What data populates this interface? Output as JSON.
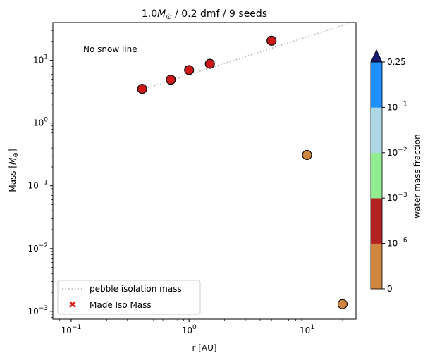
{
  "chart_data": {
    "type": "scatter",
    "title": {
      "main": "1.0",
      "msub": "⊙",
      "rest": " / 0.2 dmf / 9 seeds"
    },
    "xlabel": "r [AU]",
    "ylabel": {
      "main": "Mass [",
      "msub": "⊕",
      "rest": "]"
    },
    "xscale": "log",
    "yscale": "log",
    "xlim": [
      0.07,
      26
    ],
    "ylim": [
      0.00075,
      40
    ],
    "grid": false,
    "x_tick_labels": [
      {
        "value": 0.1,
        "base": "10",
        "exp": "−1"
      },
      {
        "value": 1,
        "base": "10",
        "exp": "0"
      },
      {
        "value": 10,
        "base": "10",
        "exp": "1"
      }
    ],
    "y_tick_labels": [
      {
        "value": 0.001,
        "base": "10",
        "exp": "−3"
      },
      {
        "value": 0.01,
        "base": "10",
        "exp": "−2"
      },
      {
        "value": 0.1,
        "base": "10",
        "exp": "−1"
      },
      {
        "value": 1,
        "base": "10",
        "exp": "0"
      },
      {
        "value": 10,
        "base": "10",
        "exp": "1"
      }
    ],
    "annotation": "No snow line",
    "pebble_isolation_mass": {
      "name": "pebble isolation mass",
      "x": [
        0.4,
        26
      ],
      "y": [
        3.4,
        42
      ],
      "color": "#aaaaaa",
      "style": "dotted"
    },
    "planets": [
      {
        "r": 0.4,
        "mass": 3.5,
        "wmf_band": 1,
        "made_iso": true
      },
      {
        "r": 0.7,
        "mass": 4.9,
        "wmf_band": 1,
        "made_iso": true
      },
      {
        "r": 1.0,
        "mass": 7.0,
        "wmf_band": 1,
        "made_iso": true
      },
      {
        "r": 1.5,
        "mass": 8.8,
        "wmf_band": 1,
        "made_iso": true
      },
      {
        "r": 5.0,
        "mass": 20.5,
        "wmf_band": 1,
        "made_iso": true
      },
      {
        "r": 10.0,
        "mass": 0.31,
        "wmf_band": 0,
        "made_iso": false
      },
      {
        "r": 20.0,
        "mass": 0.0013,
        "wmf_band": 0,
        "made_iso": false
      }
    ],
    "made_iso_series": {
      "name": "Made Iso Mass",
      "color": "#dd1111",
      "marker": "x"
    },
    "legend": {
      "position": "lower-left",
      "entries": [
        "pebble isolation mass",
        "Made Iso Mass"
      ]
    },
    "colorbar": {
      "label": "water mass fraction",
      "bands": [
        "#cd853f",
        "#b22222",
        "#90ee90",
        "#add8e6",
        "#1e90ff"
      ],
      "extend_top_color": "#191970",
      "tick_labels": [
        {
          "base": "0",
          "exp": ""
        },
        {
          "base": "10",
          "exp": "−6"
        },
        {
          "base": "10",
          "exp": "−3"
        },
        {
          "base": "10",
          "exp": "−2"
        },
        {
          "base": "10",
          "exp": "−1"
        },
        {
          "base": "0.25",
          "exp": ""
        }
      ]
    }
  }
}
